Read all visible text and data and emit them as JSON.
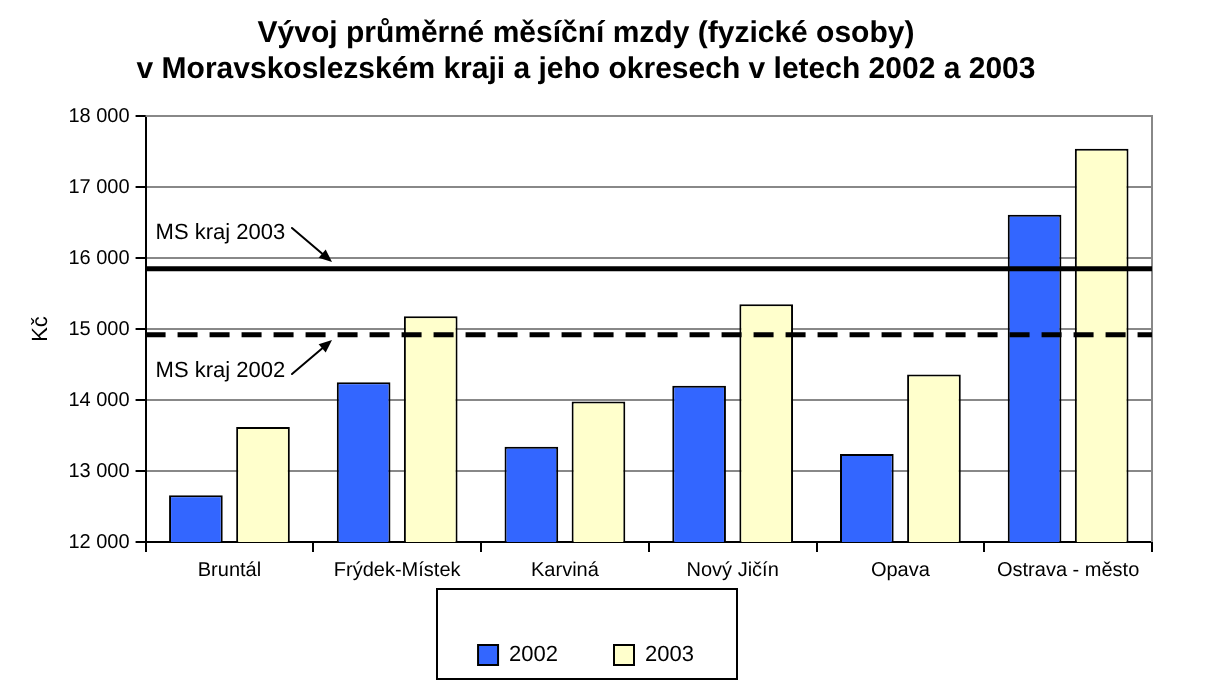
{
  "chart_data": {
    "type": "bar",
    "title": "Vývoj průměrné měsíční mzdy (fyzické osoby)\nv Moravskoslezském kraji a jeho okresech v letech 2002 a 2003",
    "ylabel": "Kč",
    "categories": [
      "Bruntál",
      "Frýdek-Místek",
      "Karviná",
      "Nový Jičín",
      "Opava",
      "Ostrava - město"
    ],
    "series": [
      {
        "name": "2002",
        "color": "#3366ff",
        "values": [
          12660,
          14250,
          13340,
          14200,
          13240,
          16610
        ]
      },
      {
        "name": "2003",
        "color": "#ffffcc",
        "values": [
          13620,
          15180,
          13980,
          15350,
          14360,
          17540
        ]
      }
    ],
    "ylim": [
      12000,
      18000
    ],
    "yticks": [
      {
        "value": 12000,
        "label": "12 000"
      },
      {
        "value": 13000,
        "label": "13 000"
      },
      {
        "value": 14000,
        "label": "14 000"
      },
      {
        "value": 15000,
        "label": "15 000"
      },
      {
        "value": 16000,
        "label": "16 000"
      },
      {
        "value": 17000,
        "label": "17 000"
      },
      {
        "value": 18000,
        "label": "18 000"
      }
    ],
    "ref_lines": [
      {
        "axis": "y",
        "value": 15850,
        "label": "MS kraj 2003",
        "color": "#000000",
        "line_style": "solid"
      },
      {
        "axis": "y",
        "value": 14920,
        "label": "MS kraj 2002",
        "color": "#000000",
        "line_style": "dashed"
      }
    ],
    "grid": "y",
    "legend": "bottom"
  }
}
